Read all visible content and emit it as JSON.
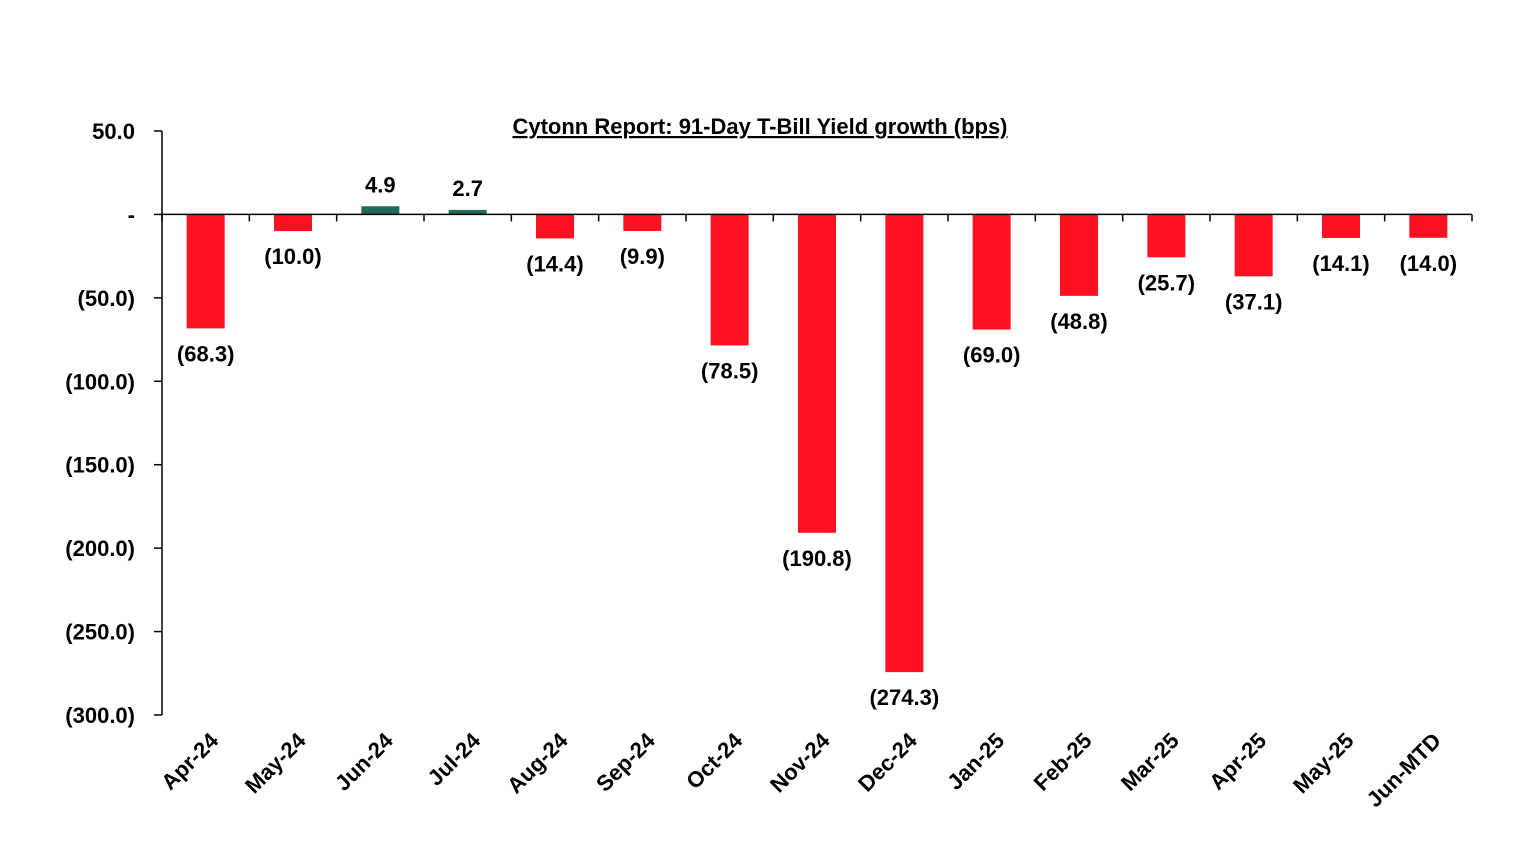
{
  "chart_data": {
    "type": "bar",
    "title": "Cytonn Report:  91-Day T-Bill Yield growth (bps)",
    "xlabel": "",
    "ylabel": "",
    "ylim": [
      -300,
      50
    ],
    "y_ticks": [
      {
        "value": 50,
        "label": "50.0"
      },
      {
        "value": 0,
        "label": "-"
      },
      {
        "value": -50,
        "label": "(50.0)"
      },
      {
        "value": -100,
        "label": "(100.0)"
      },
      {
        "value": -150,
        "label": "(150.0)"
      },
      {
        "value": -200,
        "label": "(200.0)"
      },
      {
        "value": -250,
        "label": "(250.0)"
      },
      {
        "value": -300,
        "label": "(300.0)"
      }
    ],
    "categories": [
      "Apr-24",
      "May-24",
      "Jun-24",
      "Jul-24",
      "Aug-24",
      "Sep-24",
      "Oct-24",
      "Nov-24",
      "Dec-24",
      "Jan-25",
      "Feb-25",
      "Mar-25",
      "Apr-25",
      "May-25",
      "Jun-MTD"
    ],
    "values": [
      -68.3,
      -10.0,
      4.9,
      2.7,
      -14.4,
      -9.9,
      -78.5,
      -190.8,
      -274.3,
      -69.0,
      -48.8,
      -25.7,
      -37.1,
      -14.1,
      -14.0
    ],
    "data_labels": [
      "(68.3)",
      "(10.0)",
      "4.9",
      "2.7",
      "(14.4)",
      "(9.9)",
      "(78.5)",
      "(190.8)",
      "(274.3)",
      "(69.0)",
      "(48.8)",
      "(25.7)",
      "(37.1)",
      "(14.1)",
      "(14.0)"
    ],
    "colors": {
      "positive": "#1f6b5a",
      "negative": "#ff1122"
    },
    "grid": false,
    "legend": "none"
  }
}
